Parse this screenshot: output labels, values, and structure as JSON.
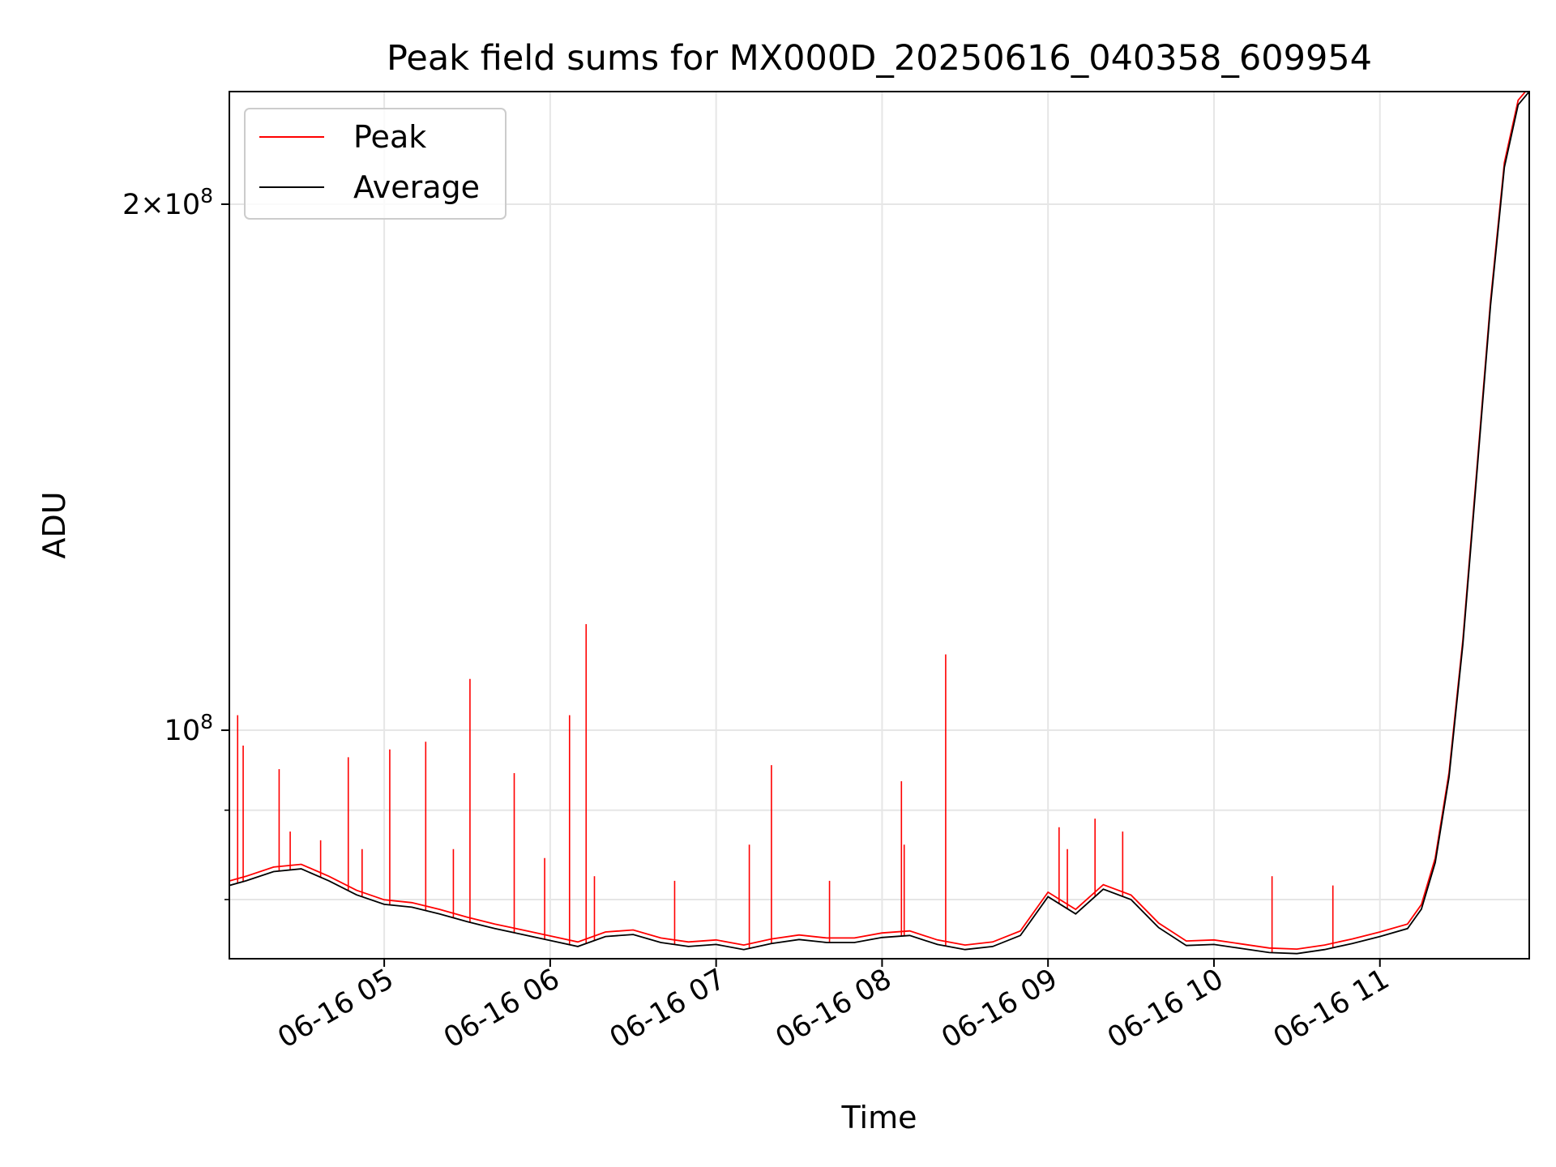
{
  "chart_data": {
    "type": "line",
    "title": "Peak field sums for MX000D_20250616_040358_609954",
    "xlabel": "Time",
    "ylabel": "ADU",
    "x_axis": {
      "kind": "datetime",
      "range": [
        "06-16 04:04",
        "06-16 11:54"
      ]
    },
    "y_axis": {
      "scale": "log",
      "range": [
        74000000,
        232000000
      ]
    },
    "x_ticks": [
      "06-16 05",
      "06-16 06",
      "06-16 07",
      "06-16 08",
      "06-16 09",
      "06-16 10",
      "06-16 11"
    ],
    "y_ticks": [
      {
        "value": 100000000,
        "base": "10",
        "exp": "8",
        "coef": ""
      },
      {
        "value": 200000000,
        "base": "10",
        "exp": "8",
        "coef": "2"
      }
    ],
    "y_minor_ticks": [
      80000000,
      90000000
    ],
    "grid": true,
    "legend": {
      "position": "upper left",
      "entries": [
        "Peak",
        "Average"
      ]
    },
    "series": [
      {
        "name": "Average",
        "color": "#000000",
        "x": [
          "06-16 04:04",
          "06-16 04:10",
          "06-16 04:20",
          "06-16 04:30",
          "06-16 04:40",
          "06-16 04:50",
          "06-16 05:00",
          "06-16 05:10",
          "06-16 05:20",
          "06-16 05:30",
          "06-16 05:40",
          "06-16 05:50",
          "06-16 06:00",
          "06-16 06:10",
          "06-16 06:20",
          "06-16 06:30",
          "06-16 06:40",
          "06-16 06:50",
          "06-16 07:00",
          "06-16 07:10",
          "06-16 07:20",
          "06-16 07:30",
          "06-16 07:40",
          "06-16 07:50",
          "06-16 08:00",
          "06-16 08:10",
          "06-16 08:20",
          "06-16 08:30",
          "06-16 08:40",
          "06-16 08:50",
          "06-16 09:00",
          "06-16 09:10",
          "06-16 09:20",
          "06-16 09:30",
          "06-16 09:40",
          "06-16 09:50",
          "06-16 10:00",
          "06-16 10:10",
          "06-16 10:20",
          "06-16 10:30",
          "06-16 10:40",
          "06-16 10:50",
          "06-16 11:00",
          "06-16 11:10",
          "06-16 11:15",
          "06-16 11:20",
          "06-16 11:25",
          "06-16 11:30",
          "06-16 11:35",
          "06-16 11:40",
          "06-16 11:45",
          "06-16 11:50",
          "06-16 11:54"
        ],
        "y": [
          81500000,
          82000000,
          83000000,
          83300000,
          82000000,
          80500000,
          79500000,
          79200000,
          78500000,
          77700000,
          77000000,
          76400000,
          75800000,
          75200000,
          76200000,
          76400000,
          75600000,
          75200000,
          75400000,
          74900000,
          75500000,
          75900000,
          75600000,
          75600000,
          76100000,
          76300000,
          75400000,
          74900000,
          75200000,
          76300000,
          80300000,
          78500000,
          81100000,
          80000000,
          77100000,
          75300000,
          75400000,
          75000000,
          74600000,
          74500000,
          74900000,
          75500000,
          76200000,
          77000000,
          79000000,
          84000000,
          94000000,
          112000000,
          140000000,
          175000000,
          210000000,
          228000000,
          232000000
        ]
      },
      {
        "name": "Peak",
        "color": "#ff0000",
        "spikes": [
          {
            "x": "06-16 04:07",
            "y": 102000000
          },
          {
            "x": "06-16 04:09",
            "y": 98000000
          },
          {
            "x": "06-16 04:22",
            "y": 95000000
          },
          {
            "x": "06-16 04:26",
            "y": 87500000
          },
          {
            "x": "06-16 04:37",
            "y": 86500000
          },
          {
            "x": "06-16 04:47",
            "y": 96500000
          },
          {
            "x": "06-16 04:52",
            "y": 85500000
          },
          {
            "x": "06-16 05:02",
            "y": 97500000
          },
          {
            "x": "06-16 05:15",
            "y": 98500000
          },
          {
            "x": "06-16 05:25",
            "y": 85500000
          },
          {
            "x": "06-16 05:31",
            "y": 107000000
          },
          {
            "x": "06-16 05:47",
            "y": 94500000
          },
          {
            "x": "06-16 05:58",
            "y": 84500000
          },
          {
            "x": "06-16 06:07",
            "y": 102000000
          },
          {
            "x": "06-16 06:13",
            "y": 115000000
          },
          {
            "x": "06-16 06:16",
            "y": 82500000
          },
          {
            "x": "06-16 06:45",
            "y": 82000000
          },
          {
            "x": "06-16 07:12",
            "y": 86000000
          },
          {
            "x": "06-16 07:20",
            "y": 95500000
          },
          {
            "x": "06-16 07:41",
            "y": 82000000
          },
          {
            "x": "06-16 08:07",
            "y": 93500000
          },
          {
            "x": "06-16 08:08",
            "y": 86000000
          },
          {
            "x": "06-16 08:23",
            "y": 110500000
          },
          {
            "x": "06-16 09:04",
            "y": 88000000
          },
          {
            "x": "06-16 09:07",
            "y": 85500000
          },
          {
            "x": "06-16 09:17",
            "y": 89000000
          },
          {
            "x": "06-16 09:27",
            "y": 87500000
          },
          {
            "x": "06-16 10:21",
            "y": 82500000
          },
          {
            "x": "06-16 10:43",
            "y": 81500000
          }
        ]
      }
    ]
  }
}
